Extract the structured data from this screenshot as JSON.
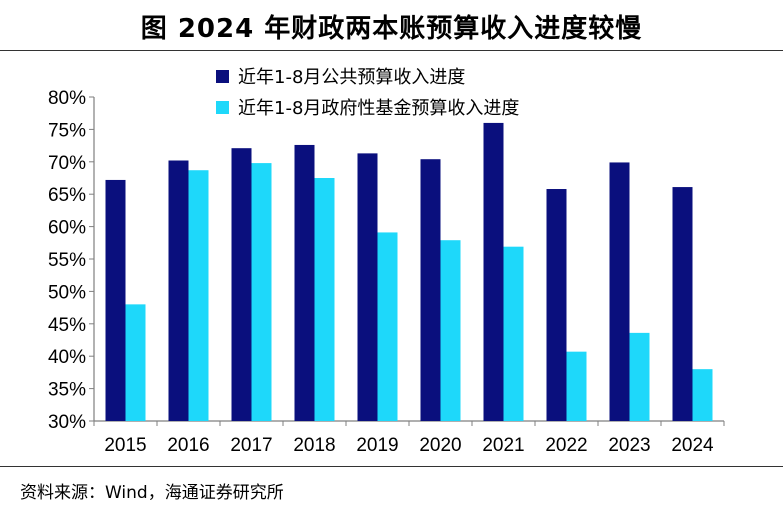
{
  "title": "图  2024 年财政两本账预算收入进度较慢",
  "source": "资料来源：Wind，海通证券研究所",
  "colors": {
    "series1": "#0a0f7d",
    "series2": "#1ed8fa"
  },
  "chart_data": {
    "type": "bar",
    "categories": [
      "2015",
      "2016",
      "2017",
      "2018",
      "2019",
      "2020",
      "2021",
      "2022",
      "2023",
      "2024"
    ],
    "series": [
      {
        "name": "近年1-8月公共预算收入进度",
        "values": [
          67.2,
          70.2,
          72.1,
          72.6,
          71.3,
          70.4,
          76.0,
          65.8,
          69.9,
          66.1
        ]
      },
      {
        "name": "近年1-8月政府性基金预算收入进度",
        "values": [
          48.0,
          68.7,
          69.8,
          67.5,
          59.1,
          57.9,
          56.9,
          40.7,
          43.6,
          38.0
        ]
      }
    ],
    "ylim": [
      30,
      80
    ],
    "yticks": [
      "30%",
      "35%",
      "40%",
      "45%",
      "50%",
      "55%",
      "60%",
      "65%",
      "70%",
      "75%",
      "80%"
    ],
    "xlabel": "",
    "ylabel": "",
    "legend": "top-center"
  }
}
